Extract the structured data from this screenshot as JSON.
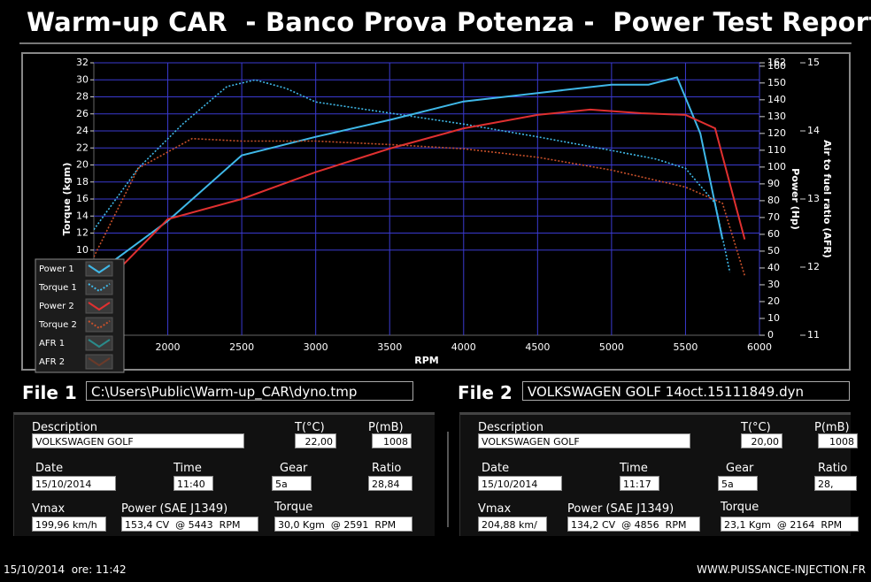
{
  "title": "Warm-up CAR  - Banco Prova Potenza -  Power Test Report",
  "chart_data": {
    "type": "line",
    "x_label": "RPM",
    "y_label": "Torque (kgm)",
    "y2_label": "Power (Hp)",
    "y3_label": "Air to fuel ratio (AFR)",
    "xlim": [
      1500,
      6000
    ],
    "xticks": [
      2000,
      2500,
      3000,
      3500,
      4000,
      4500,
      5000,
      5500,
      6000
    ],
    "ylim": [
      0,
      32
    ],
    "yticks": [
      10,
      12,
      14,
      16,
      18,
      20,
      22,
      24,
      26,
      28,
      30,
      32
    ],
    "y2lim": [
      0,
      162
    ],
    "y2ticks": [
      0,
      10,
      20,
      30,
      40,
      50,
      60,
      70,
      80,
      90,
      100,
      110,
      120,
      130,
      140,
      150,
      160,
      162
    ],
    "y3lim": [
      11,
      15
    ],
    "y3ticks": [
      11,
      12,
      13,
      14,
      15
    ],
    "grid": true,
    "legend": "lower left",
    "series": [
      {
        "name": "Power 1",
        "color": "#3fb8e8",
        "style": "solid",
        "axis": "y2",
        "x": [
          1600,
          2000,
          2500,
          3000,
          3500,
          4000,
          4500,
          5000,
          5250,
          5443,
          5600,
          5750
        ],
        "values": [
          42,
          68,
          107,
          118,
          128,
          139,
          144,
          149,
          149,
          153.4,
          120,
          57
        ]
      },
      {
        "name": "Torque 1",
        "color": "#3fb8e8",
        "style": "dotted",
        "axis": "y",
        "x": [
          1500,
          1800,
          2100,
          2400,
          2591,
          2800,
          3000,
          3500,
          4000,
          4500,
          5000,
          5300,
          5500,
          5700,
          5800
        ],
        "values": [
          12.4,
          19.6,
          24.8,
          29.2,
          30.0,
          29,
          27.4,
          26.1,
          24.8,
          23.3,
          21.7,
          20.7,
          19.6,
          15.5,
          7.4
        ]
      },
      {
        "name": "Power 2",
        "color": "#e03030",
        "style": "solid",
        "axis": "y2",
        "x": [
          1700,
          2000,
          2500,
          3000,
          3500,
          4000,
          4500,
          4856,
          5200,
          5500,
          5700,
          5900
        ],
        "values": [
          42,
          69,
          81,
          97,
          111,
          123,
          131,
          134.2,
          132,
          131,
          123,
          57
        ]
      },
      {
        "name": "Torque 2",
        "color": "#c8502a",
        "style": "dotted",
        "axis": "y",
        "x": [
          1500,
          1800,
          2164,
          2500,
          3000,
          3500,
          4000,
          4500,
          5000,
          5500,
          5750,
          5900
        ],
        "values": [
          9.2,
          19.6,
          23.1,
          22.8,
          22.8,
          22.4,
          21.9,
          20.9,
          19.4,
          17.4,
          15.5,
          7.0
        ]
      },
      {
        "name": "AFR 1",
        "color": "#2a8a8a",
        "style": "solid",
        "axis": "y3"
      },
      {
        "name": "AFR 2",
        "color": "#6a3a2a",
        "style": "solid",
        "axis": "y3"
      }
    ]
  },
  "files": [
    {
      "label": "File 1",
      "path": "C:\\Users\\Public\\Warm-up_CAR\\dyno.tmp"
    },
    {
      "label": "File 2",
      "path": "VOLKSWAGEN GOLF 14oct.15111849.dyn"
    }
  ],
  "reports": [
    {
      "fields": [
        {
          "label": "Description",
          "value": "VOLKSWAGEN GOLF"
        },
        {
          "label": "T(°C)",
          "value": "22,00"
        },
        {
          "label": "P(mB)",
          "value": "1008"
        },
        {
          "label": "Date",
          "value": "15/10/2014"
        },
        {
          "label": "Time",
          "value": "11:40"
        },
        {
          "label": "Gear",
          "value": "5a"
        },
        {
          "label": "Ratio",
          "value": "28,84"
        },
        {
          "label": "Vmax",
          "value": "199,96 km/h"
        },
        {
          "label": "Power (SAE J1349)",
          "value": "153,4 CV  @ 5443  RPM"
        },
        {
          "label": "Torque",
          "value": "30,0 Kgm  @ 2591  RPM"
        }
      ]
    },
    {
      "fields": [
        {
          "label": "Description",
          "value": "VOLKSWAGEN GOLF"
        },
        {
          "label": "T(°C)",
          "value": "20,00"
        },
        {
          "label": "P(mB)",
          "value": "1008"
        },
        {
          "label": "Date",
          "value": "15/10/2014"
        },
        {
          "label": "Time",
          "value": "11:17"
        },
        {
          "label": "Gear",
          "value": "5a"
        },
        {
          "label": "Ratio",
          "value": "28,"
        },
        {
          "label": "Vmax",
          "value": "204,88 km/"
        },
        {
          "label": "Power (SAE J1349)",
          "value": "134,2 CV  @ 4856  RPM"
        },
        {
          "label": "Torque",
          "value": "23,1 Kgm  @ 2164  RPM"
        }
      ]
    }
  ],
  "footer": {
    "timestamp": "15/10/2014  ore: 11:42",
    "website": "WWW.PUISSANCE-INJECTION.FR"
  }
}
